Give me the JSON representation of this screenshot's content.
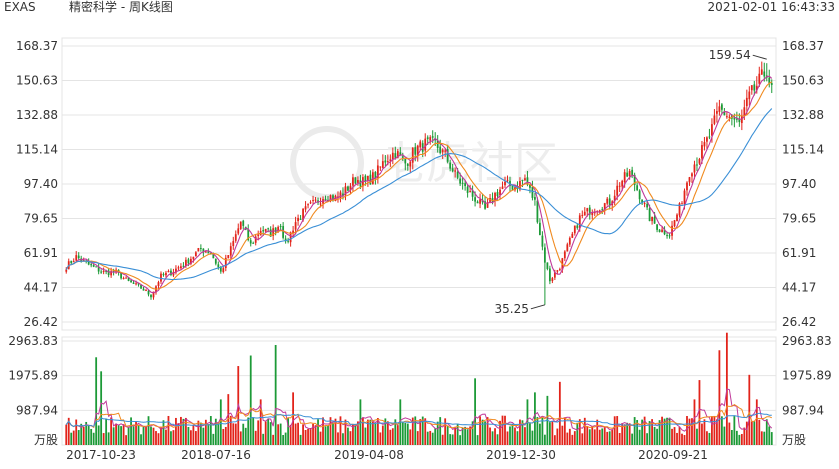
{
  "header": {
    "ticker": "EXAS",
    "title": "精密科学 - 周K线图",
    "timestamp": "2021-02-01 16:43:33"
  },
  "colors": {
    "up": "#e2231a",
    "down": "#1c9a37",
    "ma_blue": "#3a8fd6",
    "ma_orange": "#f08a1f",
    "ma_magenta": "#c0399a",
    "grid": "#e4e4e4",
    "text": "#333333"
  },
  "watermark": "老虎社区",
  "chart_data": {
    "type": "candlestick",
    "price_axis": {
      "ticks": [
        "168.37",
        "150.63",
        "132.88",
        "115.14",
        "97.40",
        "79.65",
        "61.91",
        "44.17",
        "26.42"
      ],
      "ylim": [
        26.42,
        168.37
      ]
    },
    "volume_axis": {
      "ticks": [
        "2963.83",
        "1975.89",
        "987.94"
      ],
      "unit": "万股",
      "ylim": [
        0,
        2963.83
      ]
    },
    "x_tick_labels": [
      "2017-10-23",
      "2018-07-16",
      "2019-04-08",
      "2019-12-30",
      "2020-09-21"
    ],
    "annotations": {
      "high_label": "159.54",
      "low_label": "35.25"
    },
    "anchors": [
      [
        0,
        55
      ],
      [
        4,
        60
      ],
      [
        10,
        55
      ],
      [
        15,
        52
      ],
      [
        20,
        52
      ],
      [
        25,
        47
      ],
      [
        30,
        44
      ],
      [
        34,
        40
      ],
      [
        38,
        50
      ],
      [
        42,
        52
      ],
      [
        48,
        57
      ],
      [
        54,
        64
      ],
      [
        58,
        62
      ],
      [
        62,
        52
      ],
      [
        66,
        64
      ],
      [
        70,
        78
      ],
      [
        74,
        66
      ],
      [
        78,
        74
      ],
      [
        82,
        72
      ],
      [
        86,
        77
      ],
      [
        88,
        66
      ],
      [
        92,
        78
      ],
      [
        96,
        84
      ],
      [
        100,
        88
      ],
      [
        104,
        92
      ],
      [
        108,
        90
      ],
      [
        112,
        94
      ],
      [
        116,
        100
      ],
      [
        120,
        98
      ],
      [
        124,
        102
      ],
      [
        128,
        110
      ],
      [
        132,
        114
      ],
      [
        136,
        108
      ],
      [
        140,
        115
      ],
      [
        144,
        118
      ],
      [
        148,
        118
      ],
      [
        152,
        112
      ],
      [
        156,
        102
      ],
      [
        160,
        95
      ],
      [
        164,
        90
      ],
      [
        168,
        84
      ],
      [
        172,
        92
      ],
      [
        176,
        97
      ],
      [
        180,
        96
      ],
      [
        184,
        100
      ],
      [
        188,
        88
      ],
      [
        190,
        72
      ],
      [
        192,
        58
      ],
      [
        194,
        48
      ],
      [
        198,
        55
      ],
      [
        202,
        68
      ],
      [
        206,
        80
      ],
      [
        210,
        84
      ],
      [
        214,
        86
      ],
      [
        218,
        88
      ],
      [
        222,
        98
      ],
      [
        226,
        103
      ],
      [
        230,
        92
      ],
      [
        234,
        80
      ],
      [
        238,
        74
      ],
      [
        242,
        72
      ],
      [
        246,
        85
      ],
      [
        250,
        104
      ],
      [
        254,
        112
      ],
      [
        258,
        122
      ],
      [
        262,
        136
      ],
      [
        266,
        132
      ],
      [
        270,
        128
      ],
      [
        274,
        142
      ],
      [
        278,
        150
      ],
      [
        281,
        156
      ],
      [
        283,
        145
      ]
    ],
    "count": 284,
    "ma_lengths": [
      5,
      10,
      30
    ],
    "volume_avg": 620,
    "volume_spikes": [
      [
        12,
        2500
      ],
      [
        14,
        2100
      ],
      [
        62,
        1300
      ],
      [
        65,
        1450
      ],
      [
        69,
        2250
      ],
      [
        74,
        2550
      ],
      [
        78,
        1300
      ],
      [
        84,
        2850
      ],
      [
        91,
        1500
      ],
      [
        118,
        1300
      ],
      [
        134,
        1300
      ],
      [
        164,
        1900
      ],
      [
        185,
        1300
      ],
      [
        188,
        1500
      ],
      [
        193,
        1400
      ],
      [
        198,
        1800
      ],
      [
        252,
        1300
      ],
      [
        254,
        1850
      ],
      [
        262,
        2700
      ],
      [
        265,
        3200
      ],
      [
        274,
        2000
      ],
      [
        277,
        1300
      ]
    ]
  }
}
